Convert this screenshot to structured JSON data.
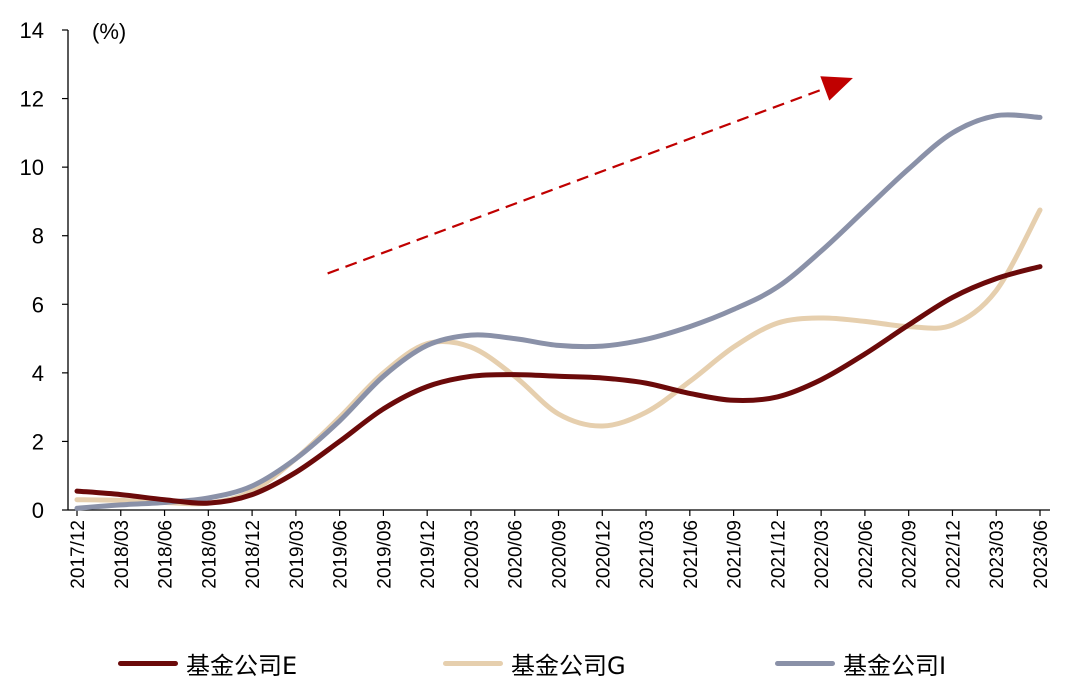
{
  "chart_data": {
    "type": "line",
    "unit_label": "(%)",
    "ylim": [
      0,
      14
    ],
    "y_ticks": [
      "0",
      "2",
      "4",
      "6",
      "8",
      "10",
      "12",
      "14"
    ],
    "categories": [
      "2017/12",
      "2018/03",
      "2018/06",
      "2018/09",
      "2018/12",
      "2019/03",
      "2019/06",
      "2019/09",
      "2019/12",
      "2020/03",
      "2020/06",
      "2020/09",
      "2020/12",
      "2021/03",
      "2021/06",
      "2021/09",
      "2021/12",
      "2022/03",
      "2022/06",
      "2022/09",
      "2022/12",
      "2023/03",
      "2023/06"
    ],
    "series": [
      {
        "name": "基金公司E",
        "color": "#6b0a0a",
        "values": [
          0.55,
          0.45,
          0.3,
          0.2,
          0.45,
          1.1,
          2.0,
          2.95,
          3.6,
          3.9,
          3.95,
          3.9,
          3.85,
          3.7,
          3.4,
          3.2,
          3.3,
          3.8,
          4.55,
          5.4,
          6.2,
          6.75,
          7.1
        ]
      },
      {
        "name": "基金公司G",
        "color": "#e6cfae",
        "values": [
          0.3,
          0.28,
          0.22,
          0.2,
          0.55,
          1.5,
          2.7,
          4.0,
          4.85,
          4.75,
          3.9,
          2.8,
          2.45,
          2.85,
          3.75,
          4.75,
          5.45,
          5.6,
          5.5,
          5.35,
          5.4,
          6.4,
          8.75
        ]
      },
      {
        "name": "基金公司I",
        "color": "#8a91a8",
        "values": [
          0.05,
          0.15,
          0.22,
          0.35,
          0.7,
          1.5,
          2.6,
          3.9,
          4.8,
          5.1,
          5.0,
          4.8,
          4.78,
          4.98,
          5.35,
          5.85,
          6.5,
          7.55,
          8.75,
          9.95,
          11.0,
          11.5,
          11.45
        ]
      }
    ],
    "annotations": [
      {
        "type": "trend-arrow",
        "style": "dashed",
        "color": "#c00000",
        "from_category": "2019/06",
        "from_value": 6.9,
        "to_category": "2022/06",
        "to_value": 12.6
      }
    ],
    "legend_position": "bottom",
    "grid": false
  }
}
